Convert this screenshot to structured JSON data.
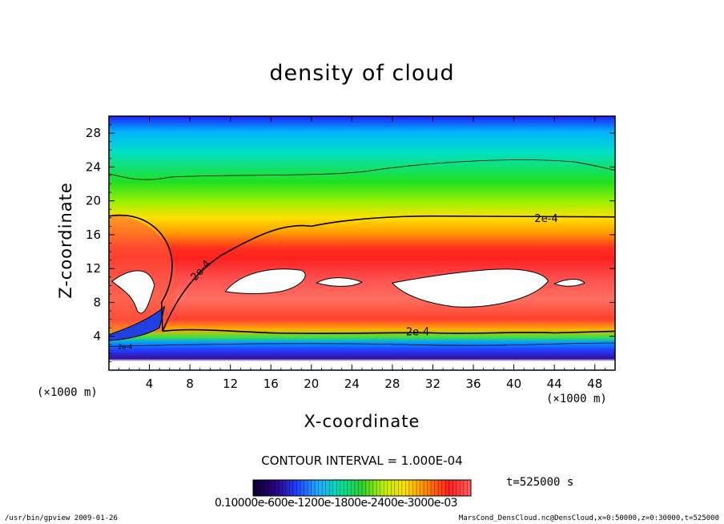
{
  "chart_data": {
    "type": "heatmap",
    "title": "density of cloud",
    "xlabel": "X-coordinate",
    "ylabel": "Z-coordinate",
    "x_unit": "(×1000 m)",
    "y_unit": "(×1000 m)",
    "xlim": [
      0,
      50
    ],
    "ylim": [
      0,
      30
    ],
    "x_ticks": [
      4,
      8,
      12,
      16,
      20,
      24,
      28,
      32,
      36,
      40,
      44,
      48
    ],
    "y_ticks": [
      4,
      8,
      12,
      16,
      20,
      24,
      28
    ],
    "contour_interval": "CONTOUR INTERVAL = 1.000E-04",
    "contour_labels": [
      {
        "text": "2e-4",
        "x": 43.2,
        "y": 18.0
      },
      {
        "text": "2e-4",
        "x": 9.3,
        "y": 12.0
      },
      {
        "text": "2e-4",
        "x": 30.5,
        "y": 4.6
      },
      {
        "text": "2e-4",
        "x": 1.6,
        "y": 3.0
      }
    ],
    "colorbar": {
      "labels_text": "0.10000e-600e-1200e-1800e-2400e-3000e-03",
      "colors": [
        "#0b0030",
        "#2a0080",
        "#2040ff",
        "#20b0ff",
        "#00e0a0",
        "#30d030",
        "#c0f000",
        "#ffe000",
        "#ff8000",
        "#ff2020",
        "#ff6060"
      ]
    },
    "time_label": "t=525000 s",
    "colormap_stops": [
      "#3a0a8c",
      "#2020ff",
      "#00a0ff",
      "#00e0c0",
      "#00e000",
      "#90ff00",
      "#ffff00",
      "#ffa000",
      "#ff4000",
      "#ff0000",
      "#ff6060"
    ],
    "footer_left": "/usr/bin/gpview  2009-01-26",
    "footer_right": "MarsCond_DensCloud.nc@DensCloud,x=0:50000,z=0:30000,t=525000"
  }
}
